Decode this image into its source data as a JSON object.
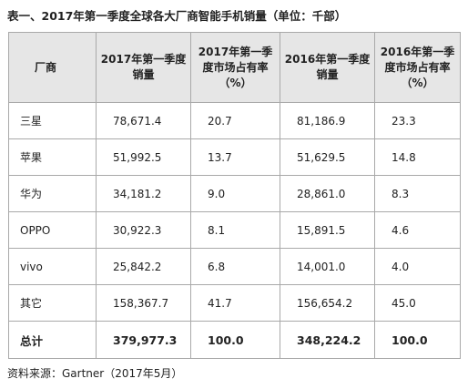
{
  "caption": "表一、2017年第一季度全球各大厂商智能手机销量（单位：千部）",
  "columns": [
    "厂商",
    "2017年第一季度销量",
    "2017年第一季度市场占有率（%）",
    "2016年第一季度销量",
    "2016年第一季度市场占有率（%）"
  ],
  "rows": [
    {
      "vendor": "三星",
      "sales_2017": "78,671.4",
      "share_2017": "20.7",
      "sales_2016": "81,186.9",
      "share_2016": "23.3"
    },
    {
      "vendor": "苹果",
      "sales_2017": "51,992.5",
      "share_2017": "13.7",
      "sales_2016": "51,629.5",
      "share_2016": "14.8"
    },
    {
      "vendor": "华为",
      "sales_2017": "34,181.2",
      "share_2017": "9.0",
      "sales_2016": "28,861.0",
      "share_2016": "8.3"
    },
    {
      "vendor": "OPPO",
      "sales_2017": "30,922.3",
      "share_2017": "8.1",
      "sales_2016": "15,891.5",
      "share_2016": "4.6"
    },
    {
      "vendor": "vivo",
      "sales_2017": "25,842.2",
      "share_2017": "6.8",
      "sales_2016": "14,001.0",
      "share_2016": "4.0"
    },
    {
      "vendor": "其它",
      "sales_2017": "158,367.7",
      "share_2017": "41.7",
      "sales_2016": "156,654.2",
      "share_2016": "45.0"
    },
    {
      "vendor": "总计",
      "sales_2017": "379,977.3",
      "share_2017": "100.0",
      "sales_2016": "348,224.2",
      "share_2016": "100.0"
    }
  ],
  "source": "资料来源：Gartner（2017年5月）"
}
